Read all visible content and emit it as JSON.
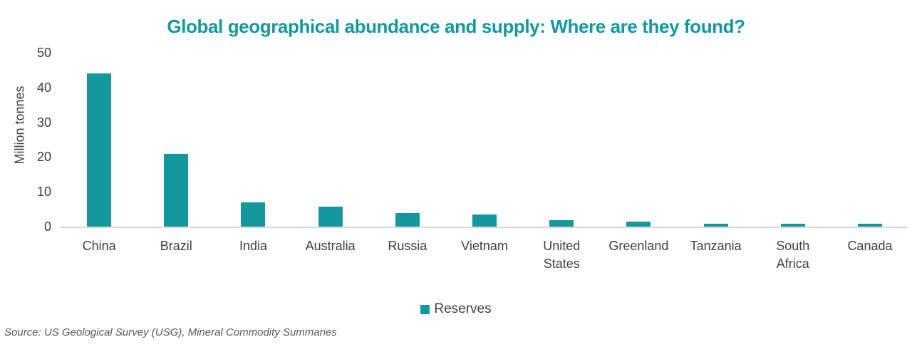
{
  "title": "Global geographical abundance and supply: Where are they found?",
  "y_axis": {
    "label": "Million tonnes",
    "ticks": [
      50,
      40,
      30,
      20,
      10,
      0
    ]
  },
  "legend": {
    "label": "Reserves",
    "swatch_color": "#14989D"
  },
  "source": "Source: US Geological Survey (USG), Mineral Commodity Summaries",
  "chart_data": {
    "type": "bar",
    "title": "Global geographical abundance and supply: Where are they found?",
    "categories": [
      "China",
      "Brazil",
      "India",
      "Australia",
      "Russia",
      "Vietnam",
      "United\nStates",
      "Greenland",
      "Tanzania",
      "South\nAfrica",
      "Canada"
    ],
    "series": [
      {
        "name": "Reserves",
        "values": [
          44,
          21,
          6.9,
          5.7,
          3.8,
          3.5,
          1.9,
          1.5,
          0.89,
          0.86,
          0.83
        ]
      }
    ],
    "xlabel": "",
    "ylabel": "Million tonnes",
    "ylim": [
      0,
      50
    ],
    "ytick_step": 10,
    "grid": false,
    "legend_position": "bottom",
    "bar_color": "#14989D",
    "axis_line_color": "#d9d9d9"
  }
}
